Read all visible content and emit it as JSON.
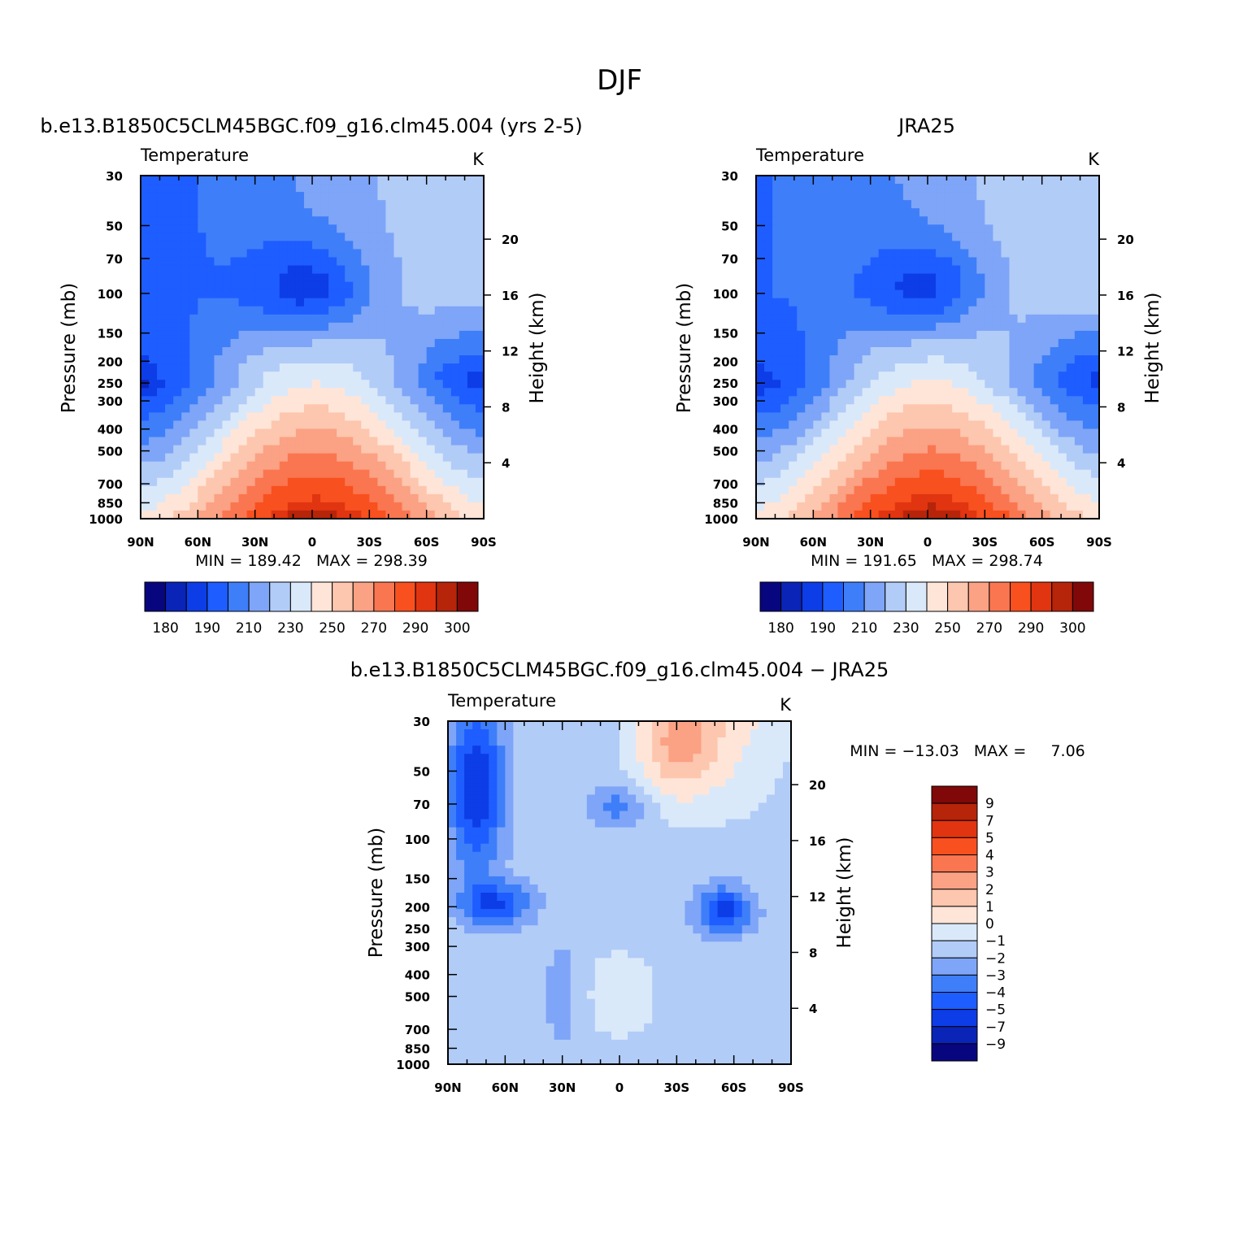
{
  "main_title": "DJF",
  "panels": [
    {
      "title": "b.e13.B1850C5CLM45BGC.f09_g16.clm45.004 (yrs 2-5)",
      "variable": "Temperature",
      "units": "K",
      "stats": "MIN = 189.42   MAX = 298.39",
      "y_label": "Pressure (mb)",
      "y2_label": "Height (km)"
    },
    {
      "title": "JRA25",
      "variable": "Temperature",
      "units": "K",
      "stats": "MIN = 191.65   MAX = 298.74",
      "y_label": "Pressure (mb)",
      "y2_label": "Height (km)"
    },
    {
      "title": "b.e13.B1850C5CLM45BGC.f09_g16.clm45.004 − JRA25",
      "variable": "Temperature",
      "units": "K",
      "stats": "MIN = −13.03   MAX =     7.06",
      "y_label": "Pressure (mb)",
      "y2_label": "Height (km)"
    }
  ],
  "chart_data": [
    {
      "type": "heatmap",
      "title": "b.e13.B1850C5CLM45BGC.f09_g16.clm45.004 (yrs 2-5)",
      "variable": "Temperature",
      "units": "K",
      "x_ticks": [
        "90N",
        "60N",
        "30N",
        "0",
        "30S",
        "60S",
        "90S"
      ],
      "y_ticks": [
        "30",
        "50",
        "70",
        "100",
        "150",
        "200",
        "250",
        "300",
        "400",
        "500",
        "700",
        "850",
        "1000"
      ],
      "y_scale": "log",
      "y2_ticks": [
        "20",
        "16",
        "12",
        "8",
        "4"
      ],
      "min": 189.42,
      "max": 298.39,
      "levels": [
        180,
        185,
        190,
        200,
        210,
        220,
        230,
        240,
        250,
        260,
        270,
        280,
        290,
        295,
        300
      ]
    },
    {
      "type": "heatmap",
      "title": "JRA25",
      "variable": "Temperature",
      "units": "K",
      "x_ticks": [
        "90N",
        "60N",
        "30N",
        "0",
        "30S",
        "60S",
        "90S"
      ],
      "y_ticks": [
        "30",
        "50",
        "70",
        "100",
        "150",
        "200",
        "250",
        "300",
        "400",
        "500",
        "700",
        "850",
        "1000"
      ],
      "y_scale": "log",
      "y2_ticks": [
        "20",
        "16",
        "12",
        "8",
        "4"
      ],
      "min": 191.65,
      "max": 298.74,
      "levels": [
        180,
        185,
        190,
        200,
        210,
        220,
        230,
        240,
        250,
        260,
        270,
        280,
        290,
        295,
        300
      ]
    },
    {
      "type": "heatmap",
      "title": "b.e13.B1850C5CLM45BGC.f09_g16.clm45.004 − JRA25",
      "variable": "Temperature",
      "units": "K",
      "x_ticks": [
        "90N",
        "60N",
        "30N",
        "0",
        "30S",
        "60S",
        "90S"
      ],
      "y_ticks": [
        "30",
        "50",
        "70",
        "100",
        "150",
        "200",
        "250",
        "300",
        "400",
        "500",
        "700",
        "850",
        "1000"
      ],
      "y_scale": "log",
      "y2_ticks": [
        "20",
        "16",
        "12",
        "8",
        "4"
      ],
      "min": -13.03,
      "max": 7.06,
      "levels": [
        -9,
        -7,
        -5,
        -4,
        -3,
        -2,
        -1,
        0,
        1,
        2,
        3,
        4,
        5,
        7,
        9
      ]
    }
  ],
  "colorbars": {
    "abs_colors": [
      "#08067f",
      "#0a24b7",
      "#0d3de6",
      "#1e5dff",
      "#3f7ef9",
      "#7ea5f7",
      "#b2ccf8",
      "#dae9fa",
      "#fee5d8",
      "#fdc6ae",
      "#fba184",
      "#fa7650",
      "#f8501f",
      "#e13410",
      "#b6240a",
      "#810808"
    ],
    "abs_labels": [
      "180",
      "190",
      "210",
      "230",
      "250",
      "270",
      "290",
      "300"
    ],
    "diff_colors": [
      "#08067f",
      "#0a24b7",
      "#0d3de6",
      "#1e5dff",
      "#3f7ef9",
      "#7ea5f7",
      "#b2ccf8",
      "#dae9fa",
      "#fee5d8",
      "#fdc6ae",
      "#fba184",
      "#fa7650",
      "#f8501f",
      "#e13410",
      "#b6240a",
      "#810808"
    ],
    "diff_labels": [
      "−9",
      "−7",
      "−5",
      "−4",
      "−3",
      "−2",
      "−1",
      "0",
      "1",
      "2",
      "3",
      "4",
      "5",
      "7",
      "9"
    ]
  }
}
